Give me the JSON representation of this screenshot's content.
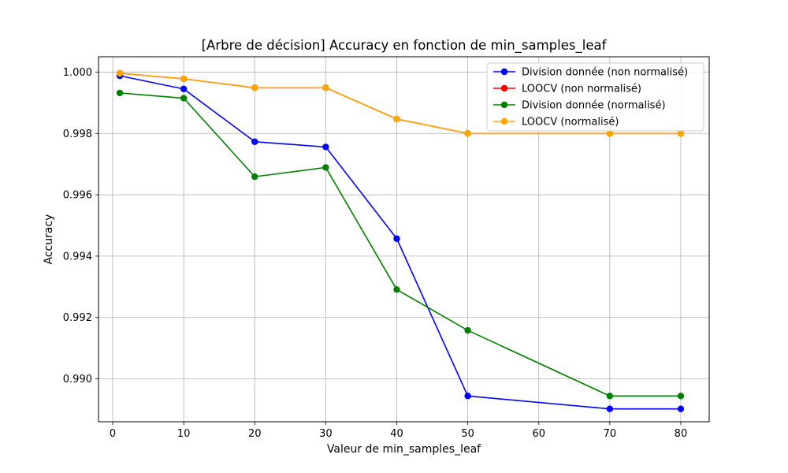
{
  "chart_data": {
    "type": "line",
    "title": "[Arbre de décision] Accuracy en fonction de min_samples_leaf",
    "xlabel": "Valeur de min_samples_leaf",
    "ylabel": "Accuracy",
    "x": [
      1,
      10,
      20,
      30,
      40,
      50,
      70,
      80
    ],
    "xticks": [
      0,
      10,
      20,
      30,
      40,
      50,
      60,
      70,
      80
    ],
    "yticks": [
      0.99,
      0.992,
      0.994,
      0.996,
      0.998,
      1.0
    ],
    "ytick_labels": [
      "0.990",
      "0.992",
      "0.994",
      "0.996",
      "0.998",
      "1.000"
    ],
    "xlim": [
      -2,
      84
    ],
    "ylim": [
      0.9886,
      1.0005
    ],
    "grid": true,
    "legend_position": "top-right",
    "series": [
      {
        "name": "Division donnée (non normalisé)",
        "color": "#0000ff",
        "values": [
          0.99988,
          0.99945,
          0.99773,
          0.99756,
          0.99457,
          0.98944,
          0.98902,
          0.98902
        ]
      },
      {
        "name": "LOOCV (non normalisé)",
        "color": "#ff0000",
        "values": [
          0.99996,
          0.99978,
          0.99949,
          0.99949,
          0.99847,
          0.998,
          0.998,
          0.998
        ]
      },
      {
        "name": "Division donnée (normalisé)",
        "color": "#008000",
        "values": [
          0.99932,
          0.99915,
          0.99659,
          0.99689,
          0.99291,
          0.99158,
          0.98944,
          0.98944
        ]
      },
      {
        "name": "LOOCV (normalisé)",
        "color": "#ffa500",
        "values": [
          0.99996,
          0.99978,
          0.99949,
          0.99949,
          0.99847,
          0.998,
          0.998,
          0.998
        ]
      }
    ]
  }
}
